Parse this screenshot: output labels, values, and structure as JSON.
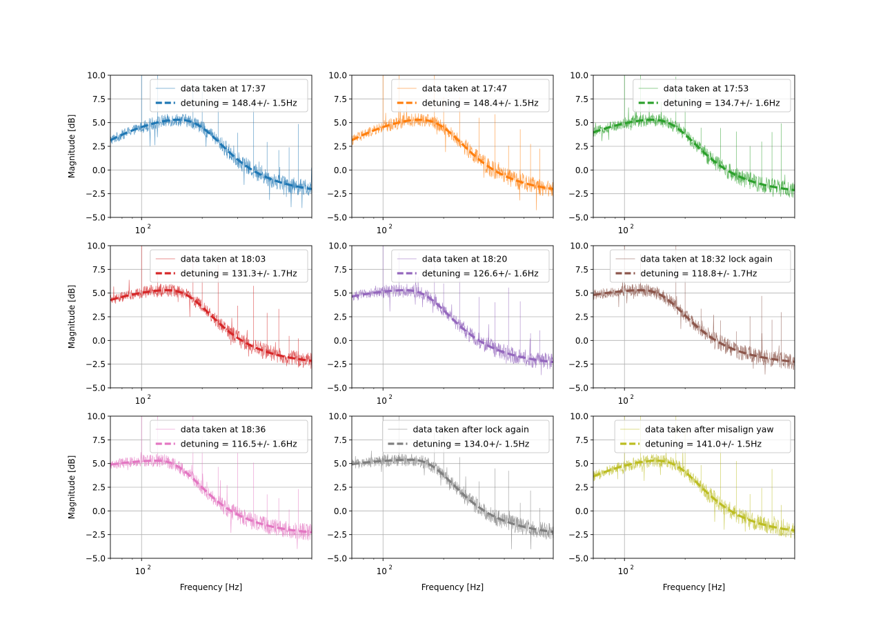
{
  "chart_data": [
    {
      "type": "line",
      "row": 0,
      "col": 0,
      "color": "#1f77b4",
      "legend": [
        "data taken at 17:37",
        "detuning = 148.4+/- 1.5Hz"
      ],
      "fit": {
        "f0": 148.4,
        "hi": 5.3,
        "lo": -2.9,
        "start": 3.1
      },
      "ylabel": "Magnitude [dB]",
      "xlabel": "",
      "xscale": "log",
      "xlim": [
        70,
        700
      ],
      "ylim": [
        -5,
        10
      ],
      "yticks": [
        "−5.0",
        "−2.5",
        "0.0",
        "2.5",
        "5.0",
        "7.5",
        "10.0"
      ],
      "xtick": "10",
      "xtick_exp": "2",
      "grid": true,
      "legend_position": "upper-right"
    },
    {
      "type": "line",
      "row": 0,
      "col": 1,
      "color": "#ff7f0e",
      "legend": [
        "data taken at 17:47",
        "detuning = 148.4+/- 1.5Hz"
      ],
      "fit": {
        "f0": 148.4,
        "hi": 5.3,
        "lo": -2.9,
        "start": 3.1
      },
      "ylabel": "",
      "xlabel": "",
      "xscale": "log",
      "xlim": [
        70,
        700
      ],
      "ylim": [
        -5,
        10
      ],
      "yticks": [
        "−5.0",
        "−2.5",
        "0.0",
        "2.5",
        "5.0",
        "7.5",
        "10.0"
      ],
      "xtick": "10",
      "xtick_exp": "2",
      "grid": true,
      "legend_position": "upper-right"
    },
    {
      "type": "line",
      "row": 0,
      "col": 2,
      "color": "#2ca02c",
      "legend": [
        "data taken at 17:53",
        "detuning = 134.7+/- 1.6Hz"
      ],
      "fit": {
        "f0": 134.7,
        "hi": 5.3,
        "lo": -2.9,
        "start": 3.6
      },
      "ylabel": "",
      "xlabel": "",
      "xscale": "log",
      "xlim": [
        70,
        700
      ],
      "ylim": [
        -5,
        10
      ],
      "yticks": [
        "−5.0",
        "−2.5",
        "0.0",
        "2.5",
        "5.0",
        "7.5",
        "10.0"
      ],
      "xtick": "10",
      "xtick_exp": "2",
      "grid": true,
      "legend_position": "upper-right"
    },
    {
      "type": "line",
      "row": 1,
      "col": 0,
      "color": "#d62728",
      "legend": [
        "data taken at 18:03",
        "detuning = 131.3+/- 1.7Hz"
      ],
      "fit": {
        "f0": 131.3,
        "hi": 5.3,
        "lo": -2.9,
        "start": 3.9
      },
      "ylabel": "Magnitude [dB]",
      "xlabel": "",
      "xscale": "log",
      "xlim": [
        70,
        700
      ],
      "ylim": [
        -5,
        10
      ],
      "yticks": [
        "−5.0",
        "−2.5",
        "0.0",
        "2.5",
        "5.0",
        "7.5",
        "10.0"
      ],
      "xtick": "10",
      "xtick_exp": "2",
      "grid": true,
      "legend_position": "upper-right"
    },
    {
      "type": "line",
      "row": 1,
      "col": 1,
      "color": "#9467bd",
      "legend": [
        "data taken at 18:20",
        "detuning = 126.6+/- 1.6Hz"
      ],
      "fit": {
        "f0": 126.6,
        "hi": 5.3,
        "lo": -3.0,
        "start": 4.3
      },
      "ylabel": "",
      "xlabel": "",
      "xscale": "log",
      "xlim": [
        70,
        700
      ],
      "ylim": [
        -5,
        10
      ],
      "yticks": [
        "−5.0",
        "−2.5",
        "0.0",
        "2.5",
        "5.0",
        "7.5",
        "10.0"
      ],
      "xtick": "10",
      "xtick_exp": "2",
      "grid": true,
      "legend_position": "upper-right"
    },
    {
      "type": "line",
      "row": 1,
      "col": 2,
      "color": "#8c564b",
      "legend": [
        "data taken at 18:32 lock again",
        "detuning = 118.8+/- 1.7Hz"
      ],
      "fit": {
        "f0": 118.8,
        "hi": 5.3,
        "lo": -2.9,
        "start": 4.4
      },
      "ylabel": "",
      "xlabel": "",
      "xscale": "log",
      "xlim": [
        70,
        700
      ],
      "ylim": [
        -5,
        10
      ],
      "yticks": [
        "−5.0",
        "−2.5",
        "0.0",
        "2.5",
        "5.0",
        "7.5",
        "10.0"
      ],
      "xtick": "10",
      "xtick_exp": "2",
      "grid": true,
      "legend_position": "upper-right"
    },
    {
      "type": "line",
      "row": 2,
      "col": 0,
      "color": "#e377c2",
      "legend": [
        "data taken at 18:36",
        "detuning = 116.5+/- 1.6Hz"
      ],
      "fit": {
        "f0": 116.5,
        "hi": 5.3,
        "lo": -2.9,
        "start": 4.5
      },
      "ylabel": "Magnitude [dB]",
      "xlabel": "Frequency [Hz]",
      "xscale": "log",
      "xlim": [
        70,
        700
      ],
      "ylim": [
        -5,
        10
      ],
      "yticks": [
        "−5.0",
        "−2.5",
        "0.0",
        "2.5",
        "5.0",
        "7.5",
        "10.0"
      ],
      "xtick": "10",
      "xtick_exp": "2",
      "grid": true,
      "legend_position": "upper-right"
    },
    {
      "type": "line",
      "row": 2,
      "col": 1,
      "color": "#7f7f7f",
      "legend": [
        "data taken after lock again",
        "detuning = 134.0+/- 1.5Hz"
      ],
      "fit": {
        "f0": 134.0,
        "hi": 5.4,
        "lo": -3.0,
        "start": 4.8
      },
      "ylabel": "",
      "xlabel": "Frequency [Hz]",
      "xscale": "log",
      "xlim": [
        70,
        700
      ],
      "ylim": [
        -5,
        10
      ],
      "yticks": [
        "−5.0",
        "−2.5",
        "0.0",
        "2.5",
        "5.0",
        "7.5",
        "10.0"
      ],
      "xtick": "10",
      "xtick_exp": "2",
      "grid": true,
      "legend_position": "upper-right"
    },
    {
      "type": "line",
      "row": 2,
      "col": 2,
      "color": "#bcbd22",
      "legend": [
        "data taken after misalign yaw",
        "detuning = 141.0+/- 1.5Hz"
      ],
      "fit": {
        "f0": 141.0,
        "hi": 5.3,
        "lo": -2.9,
        "start": 3.4
      },
      "ylabel": "",
      "xlabel": "Frequency [Hz]",
      "xscale": "log",
      "xlim": [
        70,
        700
      ],
      "ylim": [
        -5,
        10
      ],
      "yticks": [
        "−5.0",
        "−2.5",
        "0.0",
        "2.5",
        "5.0",
        "7.5",
        "10.0"
      ],
      "xtick": "10",
      "xtick_exp": "2",
      "grid": true,
      "legend_position": "upper-right"
    }
  ]
}
